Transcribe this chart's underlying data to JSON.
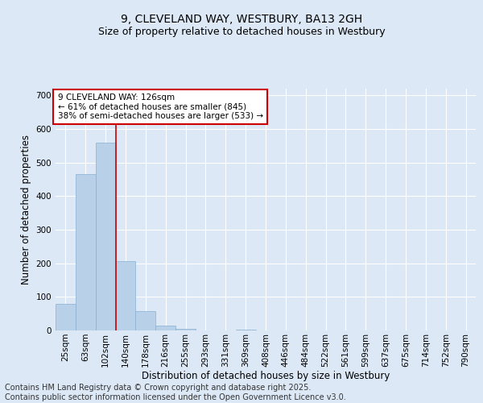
{
  "title_line1": "9, CLEVELAND WAY, WESTBURY, BA13 2GH",
  "title_line2": "Size of property relative to detached houses in Westbury",
  "xlabel": "Distribution of detached houses by size in Westbury",
  "ylabel": "Number of detached properties",
  "categories": [
    "25sqm",
    "63sqm",
    "102sqm",
    "140sqm",
    "178sqm",
    "216sqm",
    "255sqm",
    "293sqm",
    "331sqm",
    "369sqm",
    "408sqm",
    "446sqm",
    "484sqm",
    "522sqm",
    "561sqm",
    "599sqm",
    "637sqm",
    "675sqm",
    "714sqm",
    "752sqm",
    "790sqm"
  ],
  "values": [
    80,
    465,
    560,
    207,
    58,
    15,
    5,
    0,
    0,
    3,
    0,
    0,
    0,
    0,
    0,
    0,
    0,
    0,
    0,
    0,
    0
  ],
  "bar_color": "#b8d0e8",
  "bar_edge_color": "#88b0d0",
  "vline_x": 2.5,
  "vline_color": "#cc0000",
  "annotation_text": "9 CLEVELAND WAY: 126sqm\n← 61% of detached houses are smaller (845)\n38% of semi-detached houses are larger (533) →",
  "annotation_box_color": "#cc0000",
  "annotation_bg": "#ffffff",
  "ylim": [
    0,
    720
  ],
  "yticks": [
    0,
    100,
    200,
    300,
    400,
    500,
    600,
    700
  ],
  "background_color": "#dce8f5",
  "grid_color": "#ffffff",
  "footer_line1": "Contains HM Land Registry data © Crown copyright and database right 2025.",
  "footer_line2": "Contains public sector information licensed under the Open Government Licence v3.0.",
  "title_fontsize": 10,
  "subtitle_fontsize": 9,
  "label_fontsize": 8.5,
  "tick_fontsize": 7.5,
  "annot_fontsize": 7.5,
  "footer_fontsize": 7
}
